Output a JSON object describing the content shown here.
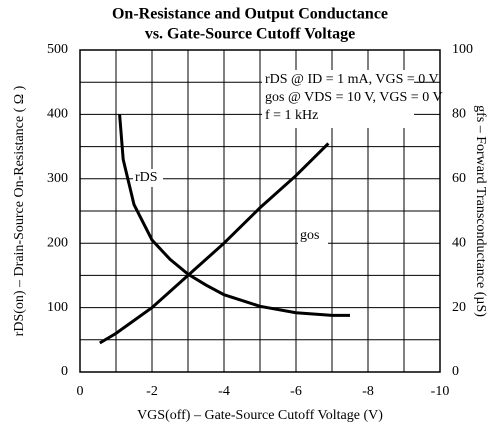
{
  "chart_data": {
    "type": "line",
    "title": "On-Resistance and Output Conductance",
    "subtitle": "vs. Gate-Source Cutoff Voltage",
    "xlabel": "VGS(off) – Gate-Source Cutoff Voltage (V)",
    "ylabel": "rDS(on) – Drain-Source On-Resistance ( Ω )",
    "y2label": "gfs – Forward Transconductance (µS)",
    "annotations": [
      "rDS @ ID = 1 mA, VGS = 0 V",
      "gos @ VDS = 10 V, VGS = 0 V",
      "f = 1 kHz"
    ],
    "xlim": [
      0,
      -10
    ],
    "xticks": [
      0,
      -2,
      -4,
      -6,
      -8,
      -10
    ],
    "xgrid": [
      0,
      -1,
      -2,
      -3,
      -4,
      -5,
      -6,
      -7,
      -8,
      -9,
      -10
    ],
    "ylim": [
      0,
      500
    ],
    "yticks": [
      0,
      100,
      200,
      300,
      400,
      500
    ],
    "ygrid": [
      0,
      50,
      100,
      150,
      200,
      250,
      300,
      350,
      400,
      450,
      500
    ],
    "y2lim": [
      0,
      100
    ],
    "y2ticks": [
      0,
      20,
      40,
      60,
      80,
      100
    ],
    "grid": true,
    "series": [
      {
        "name": "rDS",
        "color": "#000000",
        "axis": "y",
        "x": [
          -1.1,
          -1.2,
          -1.5,
          -2,
          -2.5,
          -3,
          -3.5,
          -4,
          -5,
          -6,
          -7,
          -7.5
        ],
        "values": [
          400,
          330,
          260,
          205,
          175,
          152,
          135,
          120,
          102,
          92,
          88,
          88
        ]
      },
      {
        "name": "gos",
        "color": "#000000",
        "axis": "y2",
        "x": [
          -0.55,
          -1,
          -2,
          -3,
          -4,
          -5,
          -6,
          -6.9
        ],
        "values": [
          9,
          12,
          20,
          30,
          40,
          51,
          61,
          71
        ]
      }
    ]
  }
}
